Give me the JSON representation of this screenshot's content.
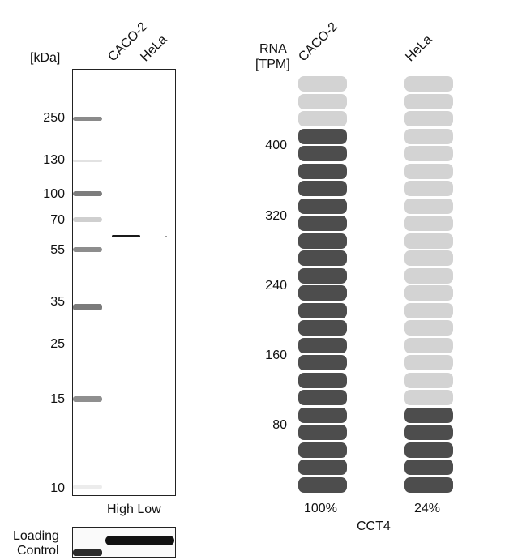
{
  "western_blot": {
    "kda_label": "[kDa]",
    "lanes": [
      "CACO-2",
      "HeLa"
    ],
    "markers": [
      "250",
      "130",
      "100",
      "70",
      "55",
      "35",
      "25",
      "15",
      "10"
    ],
    "expression_label": "High Low",
    "loading_control_label": [
      "Loading",
      "Control"
    ]
  },
  "rna": {
    "axis_title": [
      "RNA",
      "[TPM]"
    ],
    "columns": [
      "CACO-2",
      "HeLa"
    ],
    "y_ticks": [
      "400",
      "320",
      "240",
      "160",
      "80"
    ],
    "percentages": [
      "100%",
      "24%"
    ],
    "gene": "CCT4"
  },
  "chart_data": {
    "type": "bar",
    "ylabel": "RNA [TPM]",
    "y_ticks": [
      400,
      320,
      240,
      160,
      80
    ],
    "categories": [
      "CACO-2",
      "HeLa"
    ],
    "levels": [
      {
        "category": "CACO-2",
        "filled_segments": 21,
        "total_segments": 24,
        "percent": 100
      },
      {
        "category": "HeLa",
        "filled_segments": 5,
        "total_segments": 24,
        "percent": 24
      }
    ],
    "gene": "CCT4",
    "colors": {
      "filled": "#4d4d4d",
      "empty": "#d3d3d3"
    }
  }
}
